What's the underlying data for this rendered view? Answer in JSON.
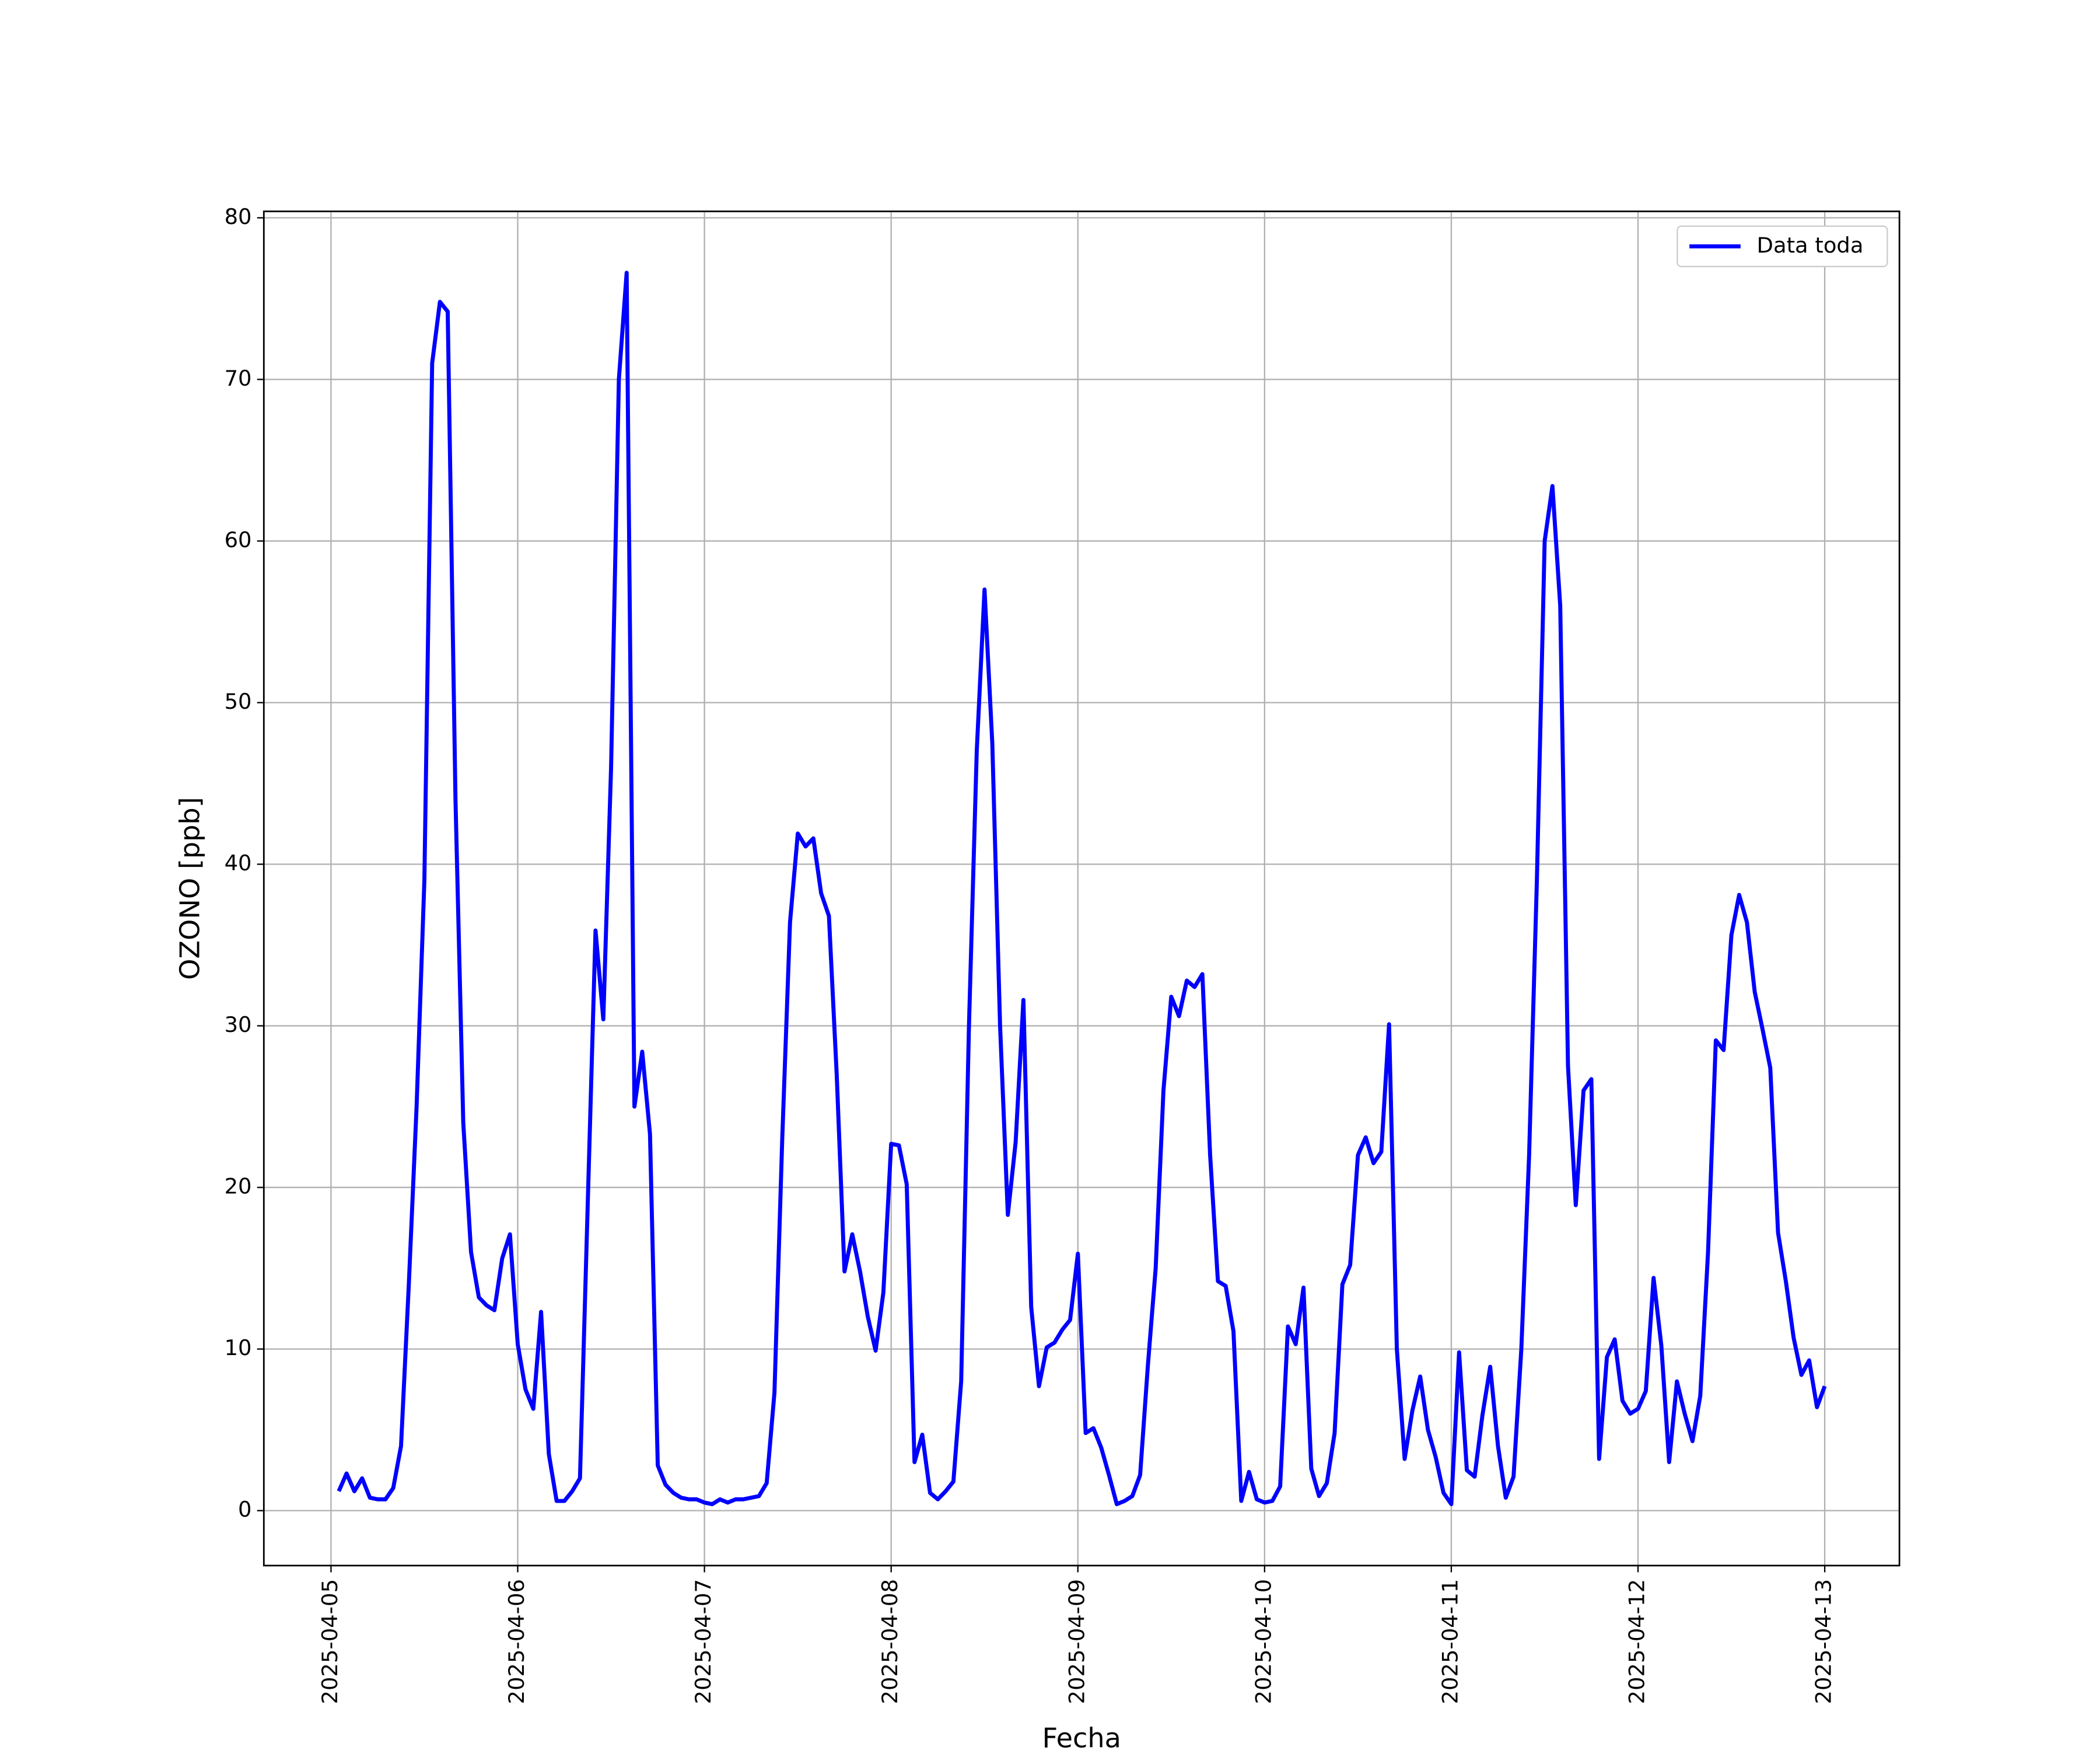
{
  "chart_data": {
    "type": "line",
    "x_label": "Fecha",
    "y_label": "OZONO [ppb]",
    "x": [
      "2025-04-05T01:00",
      "2025-04-05T02:00",
      "2025-04-05T03:00",
      "2025-04-05T04:00",
      "2025-04-05T05:00",
      "2025-04-05T06:00",
      "2025-04-05T07:00",
      "2025-04-05T08:00",
      "2025-04-05T09:00",
      "2025-04-05T10:00",
      "2025-04-05T11:00",
      "2025-04-05T12:00",
      "2025-04-05T13:00",
      "2025-04-05T14:00",
      "2025-04-05T15:00",
      "2025-04-05T16:00",
      "2025-04-05T17:00",
      "2025-04-05T18:00",
      "2025-04-05T19:00",
      "2025-04-05T20:00",
      "2025-04-05T21:00",
      "2025-04-05T22:00",
      "2025-04-05T23:00",
      "2025-04-06T00:00",
      "2025-04-06T01:00",
      "2025-04-06T02:00",
      "2025-04-06T03:00",
      "2025-04-06T04:00",
      "2025-04-06T05:00",
      "2025-04-06T06:00",
      "2025-04-06T07:00",
      "2025-04-06T08:00",
      "2025-04-06T09:00",
      "2025-04-06T10:00",
      "2025-04-06T11:00",
      "2025-04-06T12:00",
      "2025-04-06T13:00",
      "2025-04-06T14:00",
      "2025-04-06T15:00",
      "2025-04-06T16:00",
      "2025-04-06T17:00",
      "2025-04-06T18:00",
      "2025-04-06T19:00",
      "2025-04-06T20:00",
      "2025-04-06T21:00",
      "2025-04-06T22:00",
      "2025-04-06T23:00",
      "2025-04-07T00:00",
      "2025-04-07T01:00",
      "2025-04-07T02:00",
      "2025-04-07T03:00",
      "2025-04-07T04:00",
      "2025-04-07T05:00",
      "2025-04-07T06:00",
      "2025-04-07T07:00",
      "2025-04-07T08:00",
      "2025-04-07T09:00",
      "2025-04-07T10:00",
      "2025-04-07T11:00",
      "2025-04-07T12:00",
      "2025-04-07T13:00",
      "2025-04-07T14:00",
      "2025-04-07T15:00",
      "2025-04-07T16:00",
      "2025-04-07T17:00",
      "2025-04-07T18:00",
      "2025-04-07T19:00",
      "2025-04-07T20:00",
      "2025-04-07T21:00",
      "2025-04-07T22:00",
      "2025-04-07T23:00",
      "2025-04-08T00:00",
      "2025-04-08T01:00",
      "2025-04-08T02:00",
      "2025-04-08T03:00",
      "2025-04-08T04:00",
      "2025-04-08T05:00",
      "2025-04-08T06:00",
      "2025-04-08T07:00",
      "2025-04-08T08:00",
      "2025-04-08T09:00",
      "2025-04-08T10:00",
      "2025-04-08T11:00",
      "2025-04-08T12:00",
      "2025-04-08T13:00",
      "2025-04-08T14:00",
      "2025-04-08T15:00",
      "2025-04-08T16:00",
      "2025-04-08T17:00",
      "2025-04-08T18:00",
      "2025-04-08T19:00",
      "2025-04-08T20:00",
      "2025-04-08T21:00",
      "2025-04-08T22:00",
      "2025-04-08T23:00",
      "2025-04-09T00:00",
      "2025-04-09T01:00",
      "2025-04-09T02:00",
      "2025-04-09T03:00",
      "2025-04-09T04:00",
      "2025-04-09T05:00",
      "2025-04-09T06:00",
      "2025-04-09T07:00",
      "2025-04-09T08:00",
      "2025-04-09T09:00",
      "2025-04-09T10:00",
      "2025-04-09T11:00",
      "2025-04-09T12:00",
      "2025-04-09T13:00",
      "2025-04-09T14:00",
      "2025-04-09T15:00",
      "2025-04-09T16:00",
      "2025-04-09T17:00",
      "2025-04-09T18:00",
      "2025-04-09T19:00",
      "2025-04-09T20:00",
      "2025-04-09T21:00",
      "2025-04-09T22:00",
      "2025-04-09T23:00",
      "2025-04-10T00:00",
      "2025-04-10T01:00",
      "2025-04-10T02:00",
      "2025-04-10T03:00",
      "2025-04-10T04:00",
      "2025-04-10T05:00",
      "2025-04-10T06:00",
      "2025-04-10T07:00",
      "2025-04-10T08:00",
      "2025-04-10T09:00",
      "2025-04-10T10:00",
      "2025-04-10T11:00",
      "2025-04-10T12:00",
      "2025-04-10T13:00",
      "2025-04-10T14:00",
      "2025-04-10T15:00",
      "2025-04-10T16:00",
      "2025-04-10T17:00",
      "2025-04-10T18:00",
      "2025-04-10T19:00",
      "2025-04-10T20:00",
      "2025-04-10T21:00",
      "2025-04-10T22:00",
      "2025-04-10T23:00",
      "2025-04-11T00:00",
      "2025-04-11T01:00",
      "2025-04-11T02:00",
      "2025-04-11T03:00",
      "2025-04-11T04:00",
      "2025-04-11T05:00",
      "2025-04-11T06:00",
      "2025-04-11T07:00",
      "2025-04-11T08:00",
      "2025-04-11T09:00",
      "2025-04-11T10:00",
      "2025-04-11T11:00",
      "2025-04-11T12:00",
      "2025-04-11T13:00",
      "2025-04-11T14:00",
      "2025-04-11T15:00",
      "2025-04-11T16:00",
      "2025-04-11T17:00",
      "2025-04-11T18:00",
      "2025-04-11T19:00",
      "2025-04-11T20:00",
      "2025-04-11T21:00",
      "2025-04-11T22:00",
      "2025-04-11T23:00",
      "2025-04-12T00:00",
      "2025-04-12T01:00",
      "2025-04-12T02:00",
      "2025-04-12T03:00",
      "2025-04-12T04:00",
      "2025-04-12T05:00",
      "2025-04-12T06:00",
      "2025-04-12T07:00",
      "2025-04-12T08:00",
      "2025-04-12T09:00",
      "2025-04-12T10:00",
      "2025-04-12T11:00",
      "2025-04-12T12:00",
      "2025-04-12T13:00",
      "2025-04-12T14:00",
      "2025-04-12T15:00",
      "2025-04-12T16:00",
      "2025-04-12T17:00",
      "2025-04-12T18:00",
      "2025-04-12T19:00",
      "2025-04-12T20:00",
      "2025-04-12T21:00",
      "2025-04-12T22:00",
      "2025-04-12T23:00",
      "2025-04-13T00:00"
    ],
    "series": [
      {
        "name": "Data toda",
        "color": "#0000ff",
        "values": [
          1.2,
          2.3,
          1.2,
          2.0,
          0.8,
          0.7,
          0.7,
          1.4,
          4.0,
          14,
          25,
          39,
          71,
          74.8,
          74.2,
          44,
          24,
          16,
          13.2,
          12.7,
          12.4,
          15.6,
          17.1,
          10.3,
          7.5,
          6.3,
          12.3,
          3.5,
          0.6,
          0.6,
          1.2,
          2.0,
          19,
          35.9,
          30.4,
          46,
          70,
          76.6,
          25,
          28.4,
          23.3,
          2.8,
          1.6,
          1.1,
          0.8,
          0.7,
          0.7,
          0.5,
          0.4,
          0.7,
          0.5,
          0.7,
          0.7,
          0.8,
          0.9,
          1.7,
          7.3,
          23,
          36.4,
          41.9,
          41.1,
          41.6,
          38.2,
          36.8,
          27,
          14.8,
          17.1,
          14.8,
          12,
          9.9,
          13.5,
          22.7,
          22.6,
          20.2,
          3.0,
          4.7,
          1.1,
          0.7,
          1.2,
          1.8,
          8,
          30,
          47,
          57,
          47.5,
          30,
          18.3,
          22.8,
          31.6,
          12.6,
          7.7,
          10.1,
          10.4,
          11.2,
          11.8,
          15.9,
          4.8,
          5.1,
          3.9,
          2.2,
          0.4,
          0.6,
          0.9,
          2.2,
          9,
          15,
          26,
          31.8,
          30.6,
          32.8,
          32.4,
          33.2,
          22,
          14.2,
          13.9,
          11.1,
          0.6,
          2.4,
          0.7,
          0.5,
          0.6,
          1.5,
          11.4,
          10.3,
          13.8,
          2.6,
          0.9,
          1.7,
          4.8,
          14,
          15.2,
          22,
          23.1,
          21.5,
          22.2,
          30.1,
          10,
          3.2,
          6.2,
          8.3,
          5,
          3.3,
          1.1,
          0.4,
          9.8,
          2.5,
          2.1,
          5.9,
          8.9,
          4.0,
          0.8,
          2.1,
          10,
          22,
          39,
          60,
          63.4,
          56,
          27.5,
          18.9,
          26,
          26.7,
          3.2,
          9.5,
          10.6,
          6.8,
          6.0,
          6.3,
          7.4,
          14.4,
          10.2,
          3.0,
          8.0,
          6.0,
          4.3,
          7.1,
          16,
          29.1,
          28.5,
          35.6,
          38.1,
          36.4,
          32.1,
          29.8,
          27.4,
          17.2,
          14.2,
          10.7,
          8.4,
          9.3,
          6.4,
          7.7
        ]
      }
    ],
    "xlim": [
      "2025-04-04T15:22",
      "2025-04-13T09:36"
    ],
    "xticks": [
      "2025-04-05",
      "2025-04-06",
      "2025-04-07",
      "2025-04-08",
      "2025-04-09",
      "2025-04-10",
      "2025-04-11",
      "2025-04-12",
      "2025-04-13"
    ],
    "ylim": [
      -3.4,
      80.4
    ],
    "yticks": [
      0,
      10,
      20,
      30,
      40,
      50,
      60,
      70,
      80
    ],
    "grid": true,
    "legend": "upper right"
  }
}
